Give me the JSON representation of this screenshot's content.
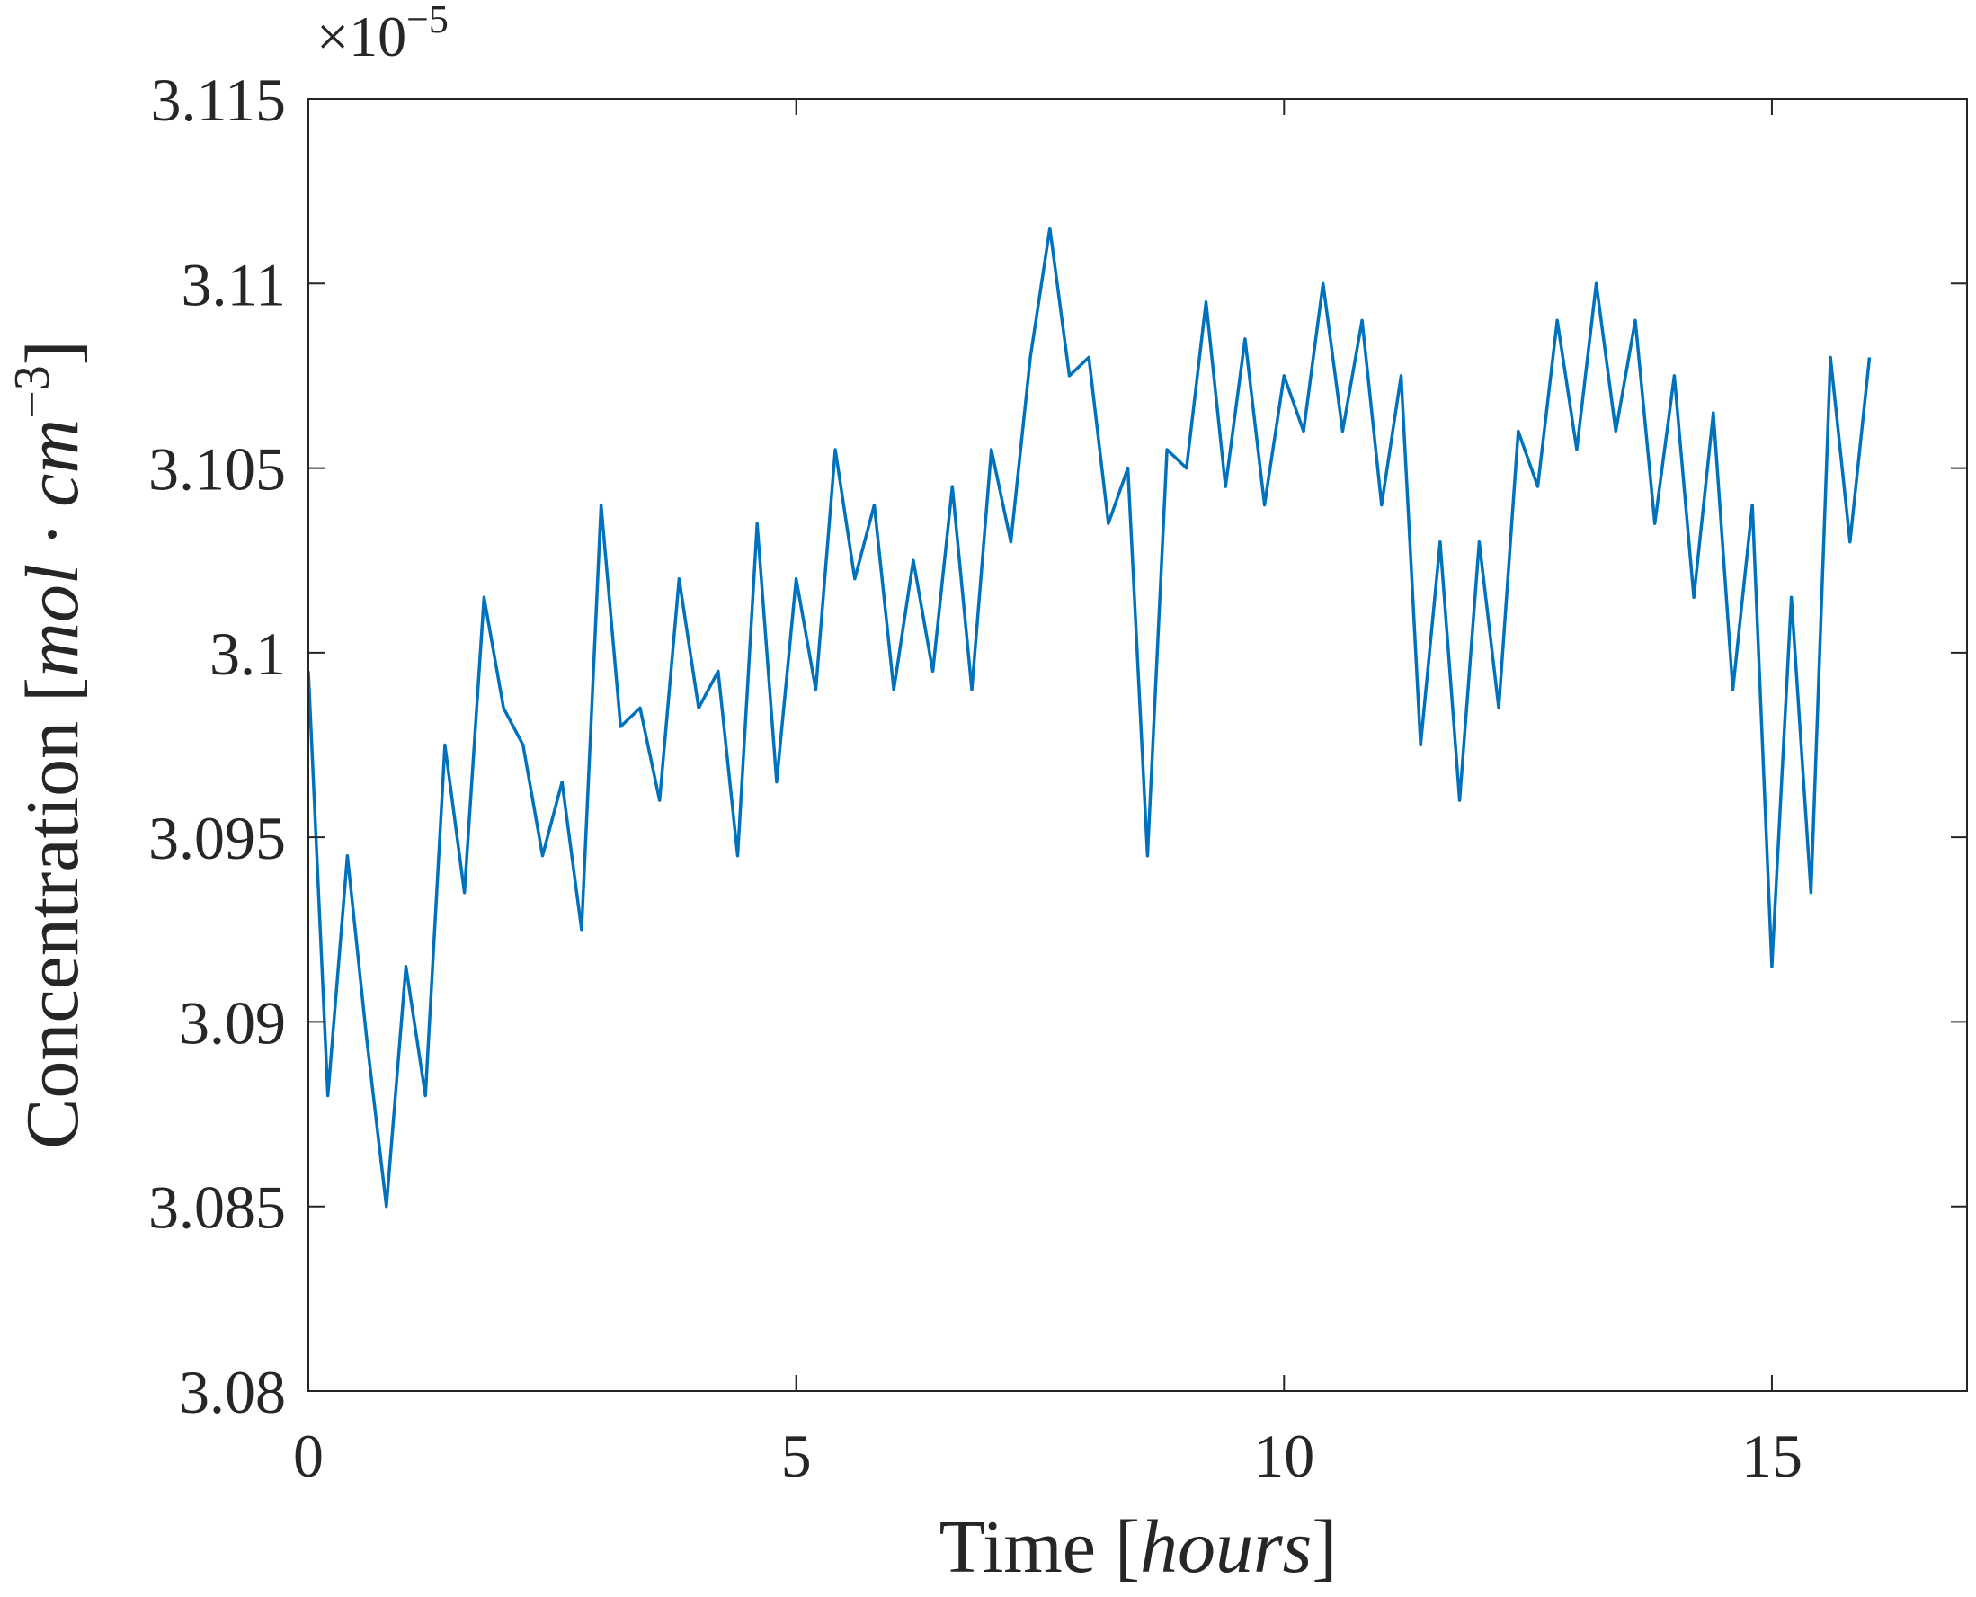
{
  "chart_data": {
    "type": "line",
    "xlabel": {
      "text": "Time [",
      "unit": "hours",
      "close": "]"
    },
    "ylabel": {
      "text": "Concentration [",
      "unit": "mol · cm",
      "exponent": "−3",
      "close": "]"
    },
    "y_multiplier": {
      "base": "×10",
      "exponent": "−5"
    },
    "color": "#0072bd",
    "x": [
      0,
      0.2,
      0.4,
      0.6,
      0.8,
      1.0,
      1.2,
      1.4,
      1.6,
      1.8,
      2.0,
      2.2,
      2.4,
      2.6,
      2.8,
      3.0,
      3.2,
      3.4,
      3.6,
      3.8,
      4.0,
      4.2,
      4.4,
      4.6,
      4.8,
      5.0,
      5.2,
      5.4,
      5.6,
      5.8,
      6.0,
      6.2,
      6.4,
      6.6,
      6.8,
      7.0,
      7.2,
      7.4,
      7.6,
      7.8,
      8.0,
      8.2,
      8.4,
      8.6,
      8.8,
      9.0,
      9.2,
      9.4,
      9.6,
      9.8,
      10.0,
      10.2,
      10.4,
      10.6,
      10.8,
      11.0,
      11.2,
      11.4,
      11.6,
      11.8,
      12.0,
      12.2,
      12.4,
      12.6,
      12.8,
      13.0,
      13.2,
      13.4,
      13.6,
      13.8,
      14.0,
      14.2,
      14.4,
      14.6,
      14.8,
      15.0,
      15.2,
      15.4,
      15.6,
      15.8,
      16.0
    ],
    "values": [
      3.0995,
      3.088,
      3.0945,
      3.0895,
      3.085,
      3.0915,
      3.088,
      3.0975,
      3.0935,
      3.1015,
      3.0985,
      3.0975,
      3.0945,
      3.0965,
      3.0925,
      3.104,
      3.098,
      3.0985,
      3.096,
      3.102,
      3.0985,
      3.0995,
      3.0945,
      3.1035,
      3.0965,
      3.102,
      3.099,
      3.1055,
      3.102,
      3.104,
      3.099,
      3.1025,
      3.0995,
      3.1045,
      3.099,
      3.1055,
      3.103,
      3.108,
      3.1115,
      3.1075,
      3.108,
      3.1035,
      3.105,
      3.0945,
      3.1055,
      3.105,
      3.1095,
      3.1045,
      3.1085,
      3.104,
      3.1075,
      3.106,
      3.11,
      3.106,
      3.109,
      3.104,
      3.1075,
      3.0975,
      3.103,
      3.096,
      3.103,
      3.0985,
      3.106,
      3.1045,
      3.109,
      3.1055,
      3.11,
      3.106,
      3.109,
      3.1035,
      3.1075,
      3.1015,
      3.1065,
      3.099,
      3.104,
      3.0915,
      3.1015,
      3.0935,
      3.108,
      3.103,
      3.108
    ],
    "xlim": [
      0,
      17
    ],
    "ylim": [
      3.08,
      3.115
    ],
    "xticks": [
      0,
      5,
      10,
      15
    ],
    "yticks": [
      3.08,
      3.085,
      3.09,
      3.095,
      3.1,
      3.105,
      3.11,
      3.115
    ],
    "box": true
  }
}
